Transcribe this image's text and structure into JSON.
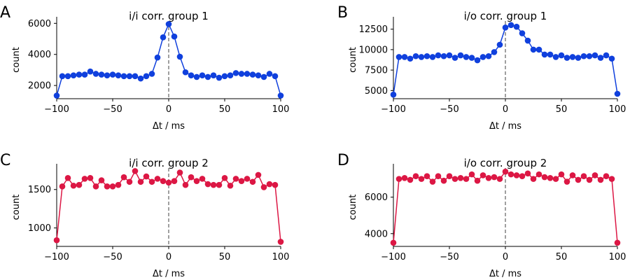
{
  "chart_data": [
    {
      "type": "line",
      "letter": "A",
      "title": "i/i corr. group 1",
      "xlabel": "Δt / ms",
      "ylabel": "count",
      "xlim": [
        -100,
        100
      ],
      "ylim": [
        1150,
        6150
      ],
      "xticks": [
        -100,
        -50,
        0,
        50,
        100
      ],
      "yticks": [
        2000,
        4000,
        6000
      ],
      "color": "#1040dd",
      "vline": 0,
      "grid": false,
      "series": [
        {
          "x": [
            -100,
            -95,
            -90,
            -85,
            -80,
            -75,
            -70,
            -65,
            -60,
            -55,
            -50,
            -45,
            -40,
            -35,
            -30,
            -25,
            -20,
            -15,
            -10,
            -5,
            0,
            5,
            10,
            15,
            20,
            25,
            30,
            35,
            40,
            45,
            50,
            55,
            60,
            65,
            70,
            75,
            80,
            85,
            90,
            95,
            100
          ],
          "values": [
            1350,
            2600,
            2600,
            2650,
            2700,
            2700,
            2900,
            2750,
            2700,
            2650,
            2700,
            2650,
            2600,
            2600,
            2600,
            2450,
            2600,
            2750,
            3800,
            5100,
            5950,
            5150,
            3850,
            2850,
            2650,
            2550,
            2650,
            2550,
            2650,
            2500,
            2600,
            2650,
            2800,
            2750,
            2750,
            2700,
            2650,
            2550,
            2750,
            2600,
            1350
          ]
        }
      ]
    },
    {
      "type": "line",
      "letter": "B",
      "title": "i/o corr. group 1",
      "xlabel": "Δt / ms",
      "ylabel": "count",
      "xlim": [
        -100,
        100
      ],
      "ylim": [
        4000,
        13500
      ],
      "xticks": [
        -100,
        -50,
        0,
        50,
        100
      ],
      "yticks": [
        5000,
        7500,
        10000,
        12500
      ],
      "color": "#1040dd",
      "vline": 0,
      "grid": false,
      "series": [
        {
          "x": [
            -100,
            -95,
            -90,
            -85,
            -80,
            -75,
            -70,
            -65,
            -60,
            -55,
            -50,
            -45,
            -40,
            -35,
            -30,
            -25,
            -20,
            -15,
            -10,
            -5,
            0,
            5,
            10,
            15,
            20,
            25,
            30,
            35,
            40,
            45,
            50,
            55,
            60,
            65,
            70,
            75,
            80,
            85,
            90,
            95,
            100
          ],
          "values": [
            4500,
            9100,
            9100,
            8900,
            9200,
            9100,
            9200,
            9100,
            9300,
            9200,
            9300,
            9000,
            9300,
            9100,
            9000,
            8700,
            9100,
            9200,
            9700,
            10600,
            12700,
            13000,
            12800,
            12000,
            11100,
            10000,
            10000,
            9400,
            9400,
            9100,
            9300,
            9000,
            9100,
            9000,
            9200,
            9200,
            9300,
            9000,
            9300,
            8900,
            4600
          ]
        }
      ]
    },
    {
      "type": "line",
      "letter": "C",
      "title": "i/i corr. group 2",
      "xlabel": "Δt / ms",
      "ylabel": "count",
      "xlim": [
        -100,
        100
      ],
      "ylim": [
        760,
        1780
      ],
      "xticks": [
        -100,
        -50,
        0,
        50,
        100
      ],
      "yticks": [
        1000,
        1500
      ],
      "color": "#dc1744",
      "vline": 0,
      "grid": false,
      "series": [
        {
          "x": [
            -100,
            -95,
            -90,
            -85,
            -80,
            -75,
            -70,
            -65,
            -60,
            -55,
            -50,
            -45,
            -40,
            -35,
            -30,
            -25,
            -20,
            -15,
            -10,
            -5,
            0,
            5,
            10,
            15,
            20,
            25,
            30,
            35,
            40,
            45,
            50,
            55,
            60,
            65,
            70,
            75,
            80,
            85,
            90,
            95,
            100
          ],
          "values": [
            840,
            1540,
            1650,
            1550,
            1560,
            1640,
            1650,
            1540,
            1620,
            1540,
            1540,
            1560,
            1660,
            1600,
            1740,
            1600,
            1670,
            1600,
            1640,
            1610,
            1590,
            1610,
            1720,
            1560,
            1660,
            1610,
            1640,
            1570,
            1560,
            1560,
            1650,
            1550,
            1640,
            1610,
            1640,
            1600,
            1690,
            1530,
            1570,
            1560,
            820
          ]
        }
      ]
    },
    {
      "type": "line",
      "letter": "D",
      "title": "i/o corr. group 2",
      "xlabel": "Δt / ms",
      "ylabel": "count",
      "xlim": [
        -100,
        100
      ],
      "ylim": [
        3300,
        7600
      ],
      "xticks": [
        -100,
        -50,
        0,
        50,
        100
      ],
      "yticks": [
        4000,
        6000
      ],
      "color": "#dc1744",
      "vline": 0,
      "grid": false,
      "series": [
        {
          "x": [
            -100,
            -95,
            -90,
            -85,
            -80,
            -75,
            -70,
            -65,
            -60,
            -55,
            -50,
            -45,
            -40,
            -35,
            -30,
            -25,
            -20,
            -15,
            -10,
            -5,
            0,
            5,
            10,
            15,
            20,
            25,
            30,
            35,
            40,
            45,
            50,
            55,
            60,
            65,
            70,
            75,
            80,
            85,
            90,
            95,
            100
          ],
          "values": [
            3500,
            7000,
            7050,
            6950,
            7150,
            7000,
            7150,
            6850,
            7150,
            6900,
            7150,
            7000,
            7050,
            7000,
            7250,
            6900,
            7200,
            7050,
            7100,
            7000,
            7400,
            7250,
            7200,
            7150,
            7300,
            7000,
            7250,
            7100,
            7050,
            7000,
            7250,
            6850,
            7200,
            6950,
            7150,
            6950,
            7200,
            6950,
            7150,
            7000,
            3500
          ]
        }
      ]
    }
  ]
}
